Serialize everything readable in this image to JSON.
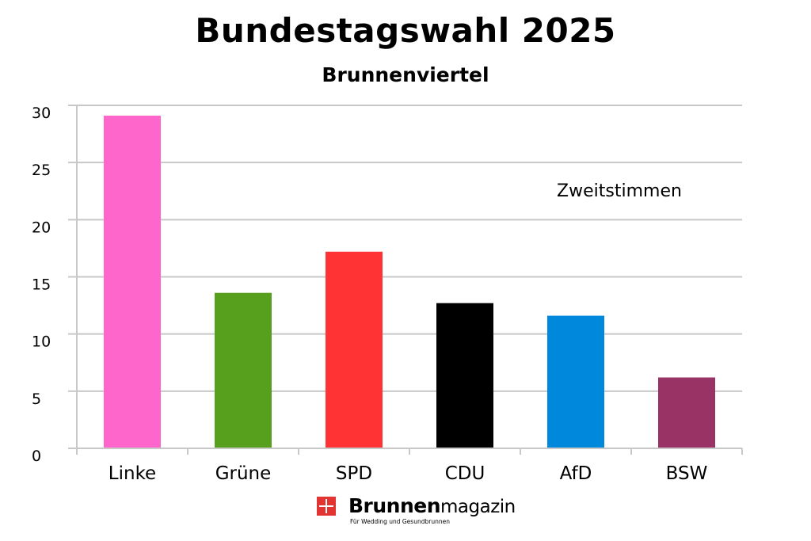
{
  "chart_data": {
    "type": "bar",
    "title": "Bundestagswahl 2025",
    "subtitle": "Brunnenviertel",
    "annotation": "Zweitstimmen",
    "categories": [
      "Linke",
      "Grüne",
      "SPD",
      "CDU",
      "AfD",
      "BSW"
    ],
    "values": [
      29.1,
      13.6,
      17.2,
      12.7,
      11.6,
      6.2
    ],
    "colors": [
      "#ff66cc",
      "#56a01e",
      "#ff3333",
      "#000000",
      "#0088dd",
      "#993366"
    ],
    "ylim": [
      0,
      30
    ],
    "yticks": [
      0,
      5,
      10,
      15,
      20,
      25,
      30
    ],
    "grid": true,
    "xlabel": "",
    "ylabel": ""
  },
  "footer": {
    "brand": "Brunnen",
    "brand_suffix": "magazin",
    "tagline": "Für Wedding und Gesundbrunnen"
  }
}
